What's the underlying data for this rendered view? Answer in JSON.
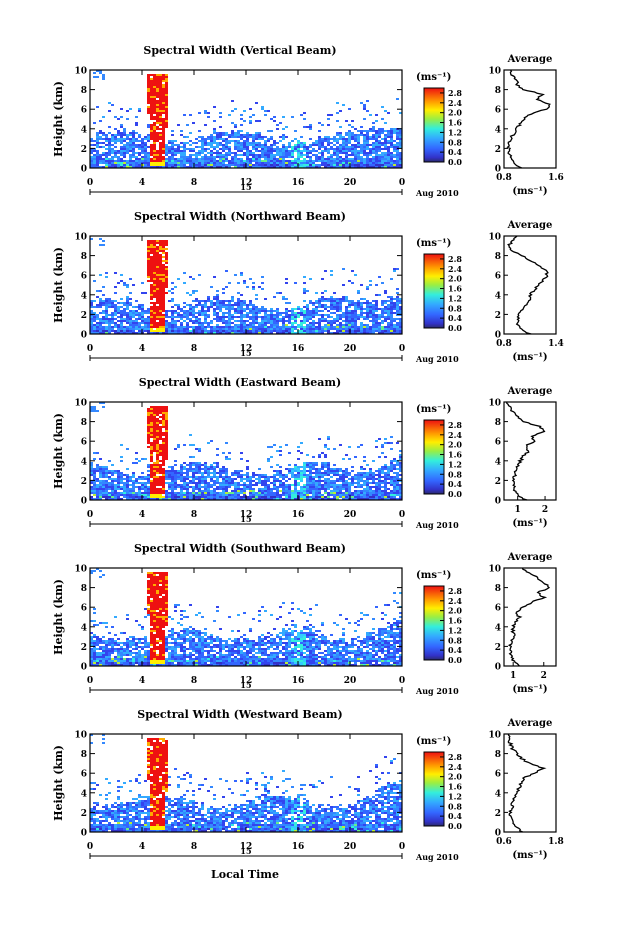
{
  "figure": {
    "xlabel": "Local Time",
    "date_label": "Aug 2010",
    "day_label": "15",
    "ylabel": "Height (km)",
    "colorbar_unit": "(ms⁻¹)",
    "colorbar_ticks": [
      "2.8",
      "2.4",
      "2.0",
      "1.6",
      "1.2",
      "0.8",
      "0.4",
      "0.0"
    ],
    "average_title": "Average",
    "average_xlabel": "(ms⁻¹)"
  },
  "chart_data": [
    {
      "type": "heatmap",
      "title": "Spectral Width (Vertical Beam)",
      "xlabel": "Local Time",
      "ylabel": "Height (km)",
      "xlim": [
        0,
        24
      ],
      "ylim": [
        0,
        10
      ],
      "xticks": [
        "0",
        "4",
        "8",
        "12",
        "16",
        "20",
        "0"
      ],
      "yticks": [
        "0",
        "2",
        "4",
        "6",
        "8",
        "10"
      ],
      "colorbar_range": [
        0.0,
        3.0
      ],
      "profile": {
        "title": "Average",
        "xlabel": "(ms⁻¹)",
        "xlim": [
          0.8,
          1.6
        ],
        "xticks": [
          "0.8",
          "1.6"
        ],
        "heights": [
          0,
          0.5,
          1,
          1.5,
          2,
          2.5,
          3,
          3.5,
          4,
          4.5,
          5,
          5.5,
          6,
          6.5,
          7,
          7.5,
          8,
          8.5,
          9,
          9.5,
          10
        ],
        "values": [
          1.05,
          0.95,
          0.9,
          0.88,
          0.87,
          0.88,
          0.9,
          0.95,
          1.0,
          1.05,
          1.1,
          1.2,
          1.45,
          1.5,
          1.3,
          1.4,
          1.1,
          1.0,
          1.0,
          0.92,
          0.9
        ]
      }
    },
    {
      "type": "heatmap",
      "title": "Spectral Width (Northward Beam)",
      "xlabel": "Local Time",
      "ylabel": "Height (km)",
      "xlim": [
        0,
        24
      ],
      "ylim": [
        0,
        10
      ],
      "xticks": [
        "0",
        "4",
        "8",
        "12",
        "16",
        "20",
        "0"
      ],
      "yticks": [
        "0",
        "2",
        "4",
        "6",
        "8",
        "10"
      ],
      "colorbar_range": [
        0.0,
        3.0
      ],
      "profile": {
        "title": "Average",
        "xlabel": "(ms⁻¹)",
        "xlim": [
          0.8,
          1.4
        ],
        "xticks": [
          "0.8",
          "1.4"
        ],
        "heights": [
          0,
          0.5,
          1,
          1.5,
          2,
          2.5,
          3,
          3.5,
          4,
          4.5,
          5,
          5.5,
          6,
          6.5,
          7,
          7.5,
          8,
          8.5,
          9,
          9.5,
          10
        ],
        "values": [
          1.1,
          1.0,
          0.95,
          0.96,
          0.98,
          1.0,
          1.05,
          1.1,
          1.1,
          1.15,
          1.2,
          1.25,
          1.3,
          1.28,
          1.2,
          1.1,
          1.0,
          0.9,
          0.85,
          0.9,
          0.95
        ]
      }
    },
    {
      "type": "heatmap",
      "title": "Spectral Width (Eastward Beam)",
      "xlabel": "Local Time",
      "ylabel": "Height (km)",
      "xlim": [
        0,
        24
      ],
      "ylim": [
        0,
        10
      ],
      "xticks": [
        "0",
        "4",
        "8",
        "12",
        "16",
        "20",
        "0"
      ],
      "yticks": [
        "0",
        "2",
        "4",
        "6",
        "8",
        "10"
      ],
      "colorbar_range": [
        0.0,
        3.0
      ],
      "profile": {
        "title": "Average",
        "xlabel": "(ms⁻¹)",
        "xlim": [
          0.5,
          2.4
        ],
        "xticks": [
          "1",
          "2"
        ],
        "heights": [
          0,
          0.5,
          1,
          1.5,
          2,
          2.5,
          3,
          3.5,
          4,
          4.5,
          5,
          5.5,
          6,
          6.5,
          7,
          7.5,
          8,
          8.5,
          9,
          9.5,
          10
        ],
        "values": [
          1.3,
          1.0,
          0.9,
          0.85,
          0.85,
          0.9,
          0.95,
          1.0,
          1.1,
          1.2,
          1.4,
          1.3,
          1.6,
          1.5,
          2.0,
          1.8,
          1.2,
          1.0,
          0.8,
          0.7,
          0.6
        ]
      }
    },
    {
      "type": "heatmap",
      "title": "Spectral Width (Southward Beam)",
      "xlabel": "Local Time",
      "ylabel": "Height (km)",
      "xlim": [
        0,
        24
      ],
      "ylim": [
        0,
        10
      ],
      "xticks": [
        "0",
        "4",
        "8",
        "12",
        "16",
        "20",
        "0"
      ],
      "yticks": [
        "0",
        "2",
        "4",
        "6",
        "8",
        "10"
      ],
      "colorbar_range": [
        0.0,
        3.0
      ],
      "profile": {
        "title": "Average",
        "xlabel": "(ms⁻¹)",
        "xlim": [
          0.7,
          2.4
        ],
        "xticks": [
          "1",
          "2"
        ],
        "heights": [
          0,
          0.5,
          1,
          1.5,
          2,
          2.5,
          3,
          3.5,
          4,
          4.5,
          5,
          5.5,
          6,
          6.5,
          7,
          7.5,
          8,
          8.5,
          9,
          9.5,
          10
        ],
        "values": [
          1.2,
          1.0,
          0.95,
          0.9,
          0.9,
          0.95,
          1.05,
          1.0,
          1.0,
          1.1,
          1.2,
          1.1,
          1.3,
          1.6,
          2.0,
          1.8,
          2.2,
          2.0,
          1.8,
          1.5,
          1.3
        ]
      }
    },
    {
      "type": "heatmap",
      "title": "Spectral Width (Westward Beam)",
      "xlabel": "Local Time",
      "ylabel": "Height (km)",
      "xlim": [
        0,
        24
      ],
      "ylim": [
        0,
        10
      ],
      "xticks": [
        "0",
        "4",
        "8",
        "12",
        "16",
        "20",
        "0"
      ],
      "yticks": [
        "0",
        "2",
        "4",
        "6",
        "8",
        "10"
      ],
      "colorbar_range": [
        0.0,
        3.0
      ],
      "profile": {
        "title": "Average",
        "xlabel": "(ms⁻¹)",
        "xlim": [
          0.6,
          1.8
        ],
        "xticks": [
          "0.6",
          "1.8"
        ],
        "heights": [
          0,
          0.5,
          1,
          1.5,
          2,
          2.5,
          3,
          3.5,
          4,
          4.5,
          5,
          5.5,
          6,
          6.5,
          7,
          7.5,
          8,
          8.5,
          9,
          9.5,
          10
        ],
        "values": [
          1.0,
          0.9,
          0.8,
          0.75,
          0.75,
          0.78,
          0.8,
          0.85,
          0.9,
          0.95,
          1.0,
          1.05,
          1.3,
          1.5,
          1.2,
          1.0,
          0.9,
          0.8,
          0.75,
          0.7,
          0.7
        ]
      }
    }
  ]
}
